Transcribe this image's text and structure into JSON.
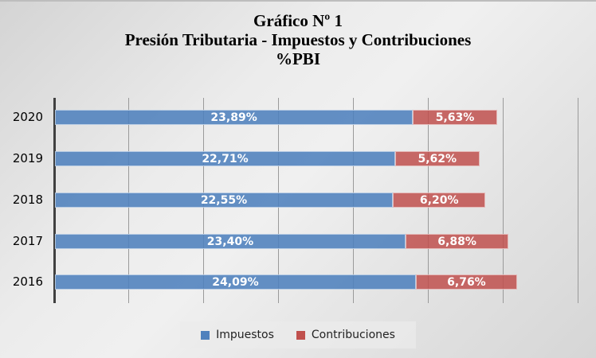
{
  "title": {
    "line1": "Gráfico  Nº 1",
    "line2": "Presión Tributaria - Impuestos y Contribuciones",
    "line3": "%PBI"
  },
  "legend": {
    "items": [
      {
        "label": "Impuestos",
        "color": "#4f81bd"
      },
      {
        "label": "Contribuciones",
        "color": "#c0504d"
      }
    ]
  },
  "rows": [
    {
      "year": "2020",
      "impuestos_label": "23,89%",
      "contribuciones_label": "5,63%"
    },
    {
      "year": "2019",
      "impuestos_label": "22,71%",
      "contribuciones_label": "5,62%"
    },
    {
      "year": "2018",
      "impuestos_label": "22,55%",
      "contribuciones_label": "6,20%"
    },
    {
      "year": "2017",
      "impuestos_label": "23,40%",
      "contribuciones_label": "6,88%"
    },
    {
      "year": "2016",
      "impuestos_label": "24,09%",
      "contribuciones_label": "6,76%"
    }
  ],
  "chart_data": {
    "type": "bar",
    "orientation": "horizontal",
    "stacked": true,
    "title": "Gráfico Nº 1 — Presión Tributaria - Impuestos y Contribuciones %PBI",
    "categories": [
      "2020",
      "2019",
      "2018",
      "2017",
      "2016"
    ],
    "series": [
      {
        "name": "Impuestos",
        "color": "#4f81bd",
        "values": [
          23.89,
          22.71,
          22.55,
          23.4,
          24.09
        ]
      },
      {
        "name": "Contribuciones",
        "color": "#c0504d",
        "values": [
          5.63,
          5.62,
          6.2,
          6.88,
          6.76
        ]
      }
    ],
    "xlabel": "",
    "ylabel": "",
    "xlim": [
      0,
      35
    ],
    "grid": {
      "vertical": true,
      "step": 5
    },
    "tick_labels_x_visible": false,
    "data_labels": true,
    "legend_position": "bottom"
  }
}
